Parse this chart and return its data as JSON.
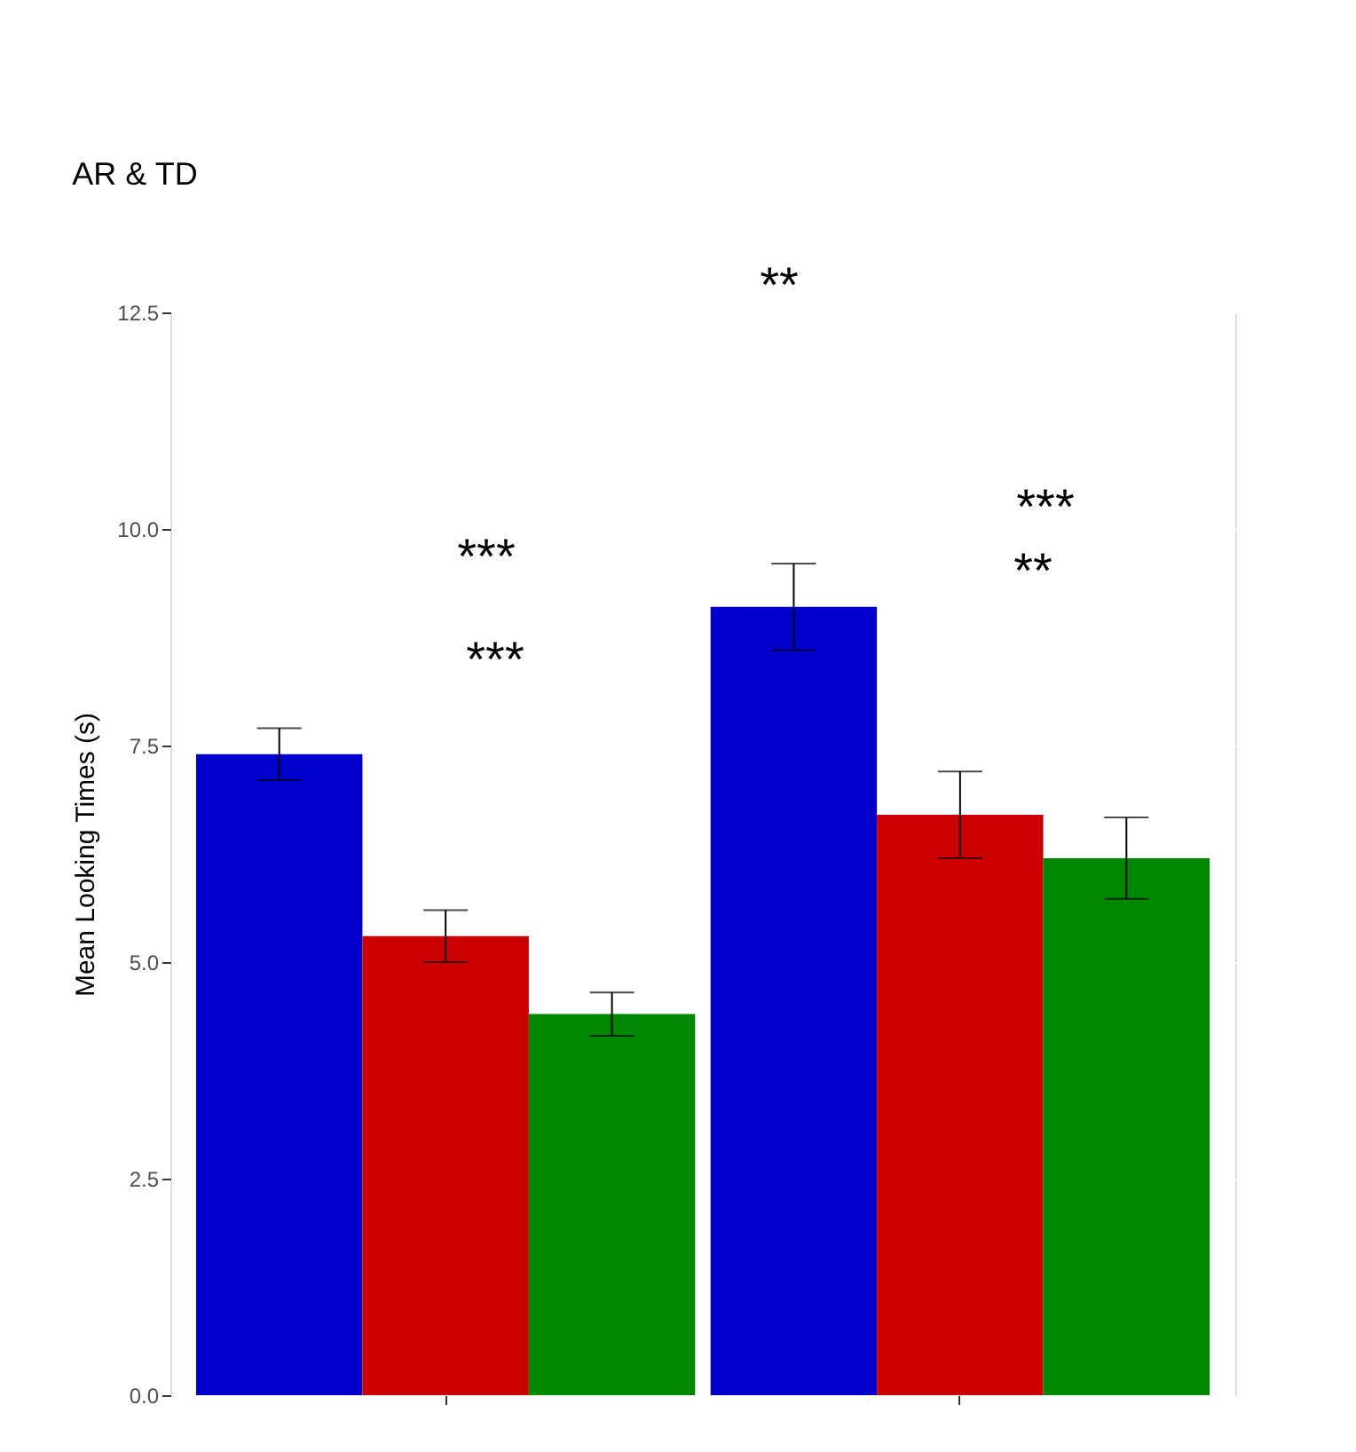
{
  "chart_data": {
    "type": "bar",
    "title": "AR  & TD",
    "ylabel": "Mean Looking Times (s)",
    "categories": [
      null,
      null
    ],
    "series": [
      {
        "color": "#0000cc",
        "values": [
          7.4,
          9.1
        ],
        "errors": [
          0.3,
          0.5
        ]
      },
      {
        "color": "#cc0000",
        "values": [
          5.3,
          6.7
        ],
        "errors": [
          0.3,
          0.5
        ]
      },
      {
        "color": "#008800",
        "values": [
          4.4,
          6.2
        ],
        "errors": [
          0.25,
          0.47
        ]
      }
    ],
    "ylim": [
      0,
      12.5
    ],
    "yticks": [
      {
        "value": 0,
        "label": "0.0"
      },
      {
        "value": 2.5,
        "label": "2.5"
      },
      {
        "value": 5,
        "label": "5.0"
      },
      {
        "value": 7.5,
        "label": "7.5"
      },
      {
        "value": 10,
        "label": "10.0"
      },
      {
        "value": 12.5,
        "label": "12.5"
      }
    ],
    "grid": true,
    "legend": false,
    "annotations": [
      "**",
      "***",
      "***",
      "***",
      "**"
    ]
  }
}
